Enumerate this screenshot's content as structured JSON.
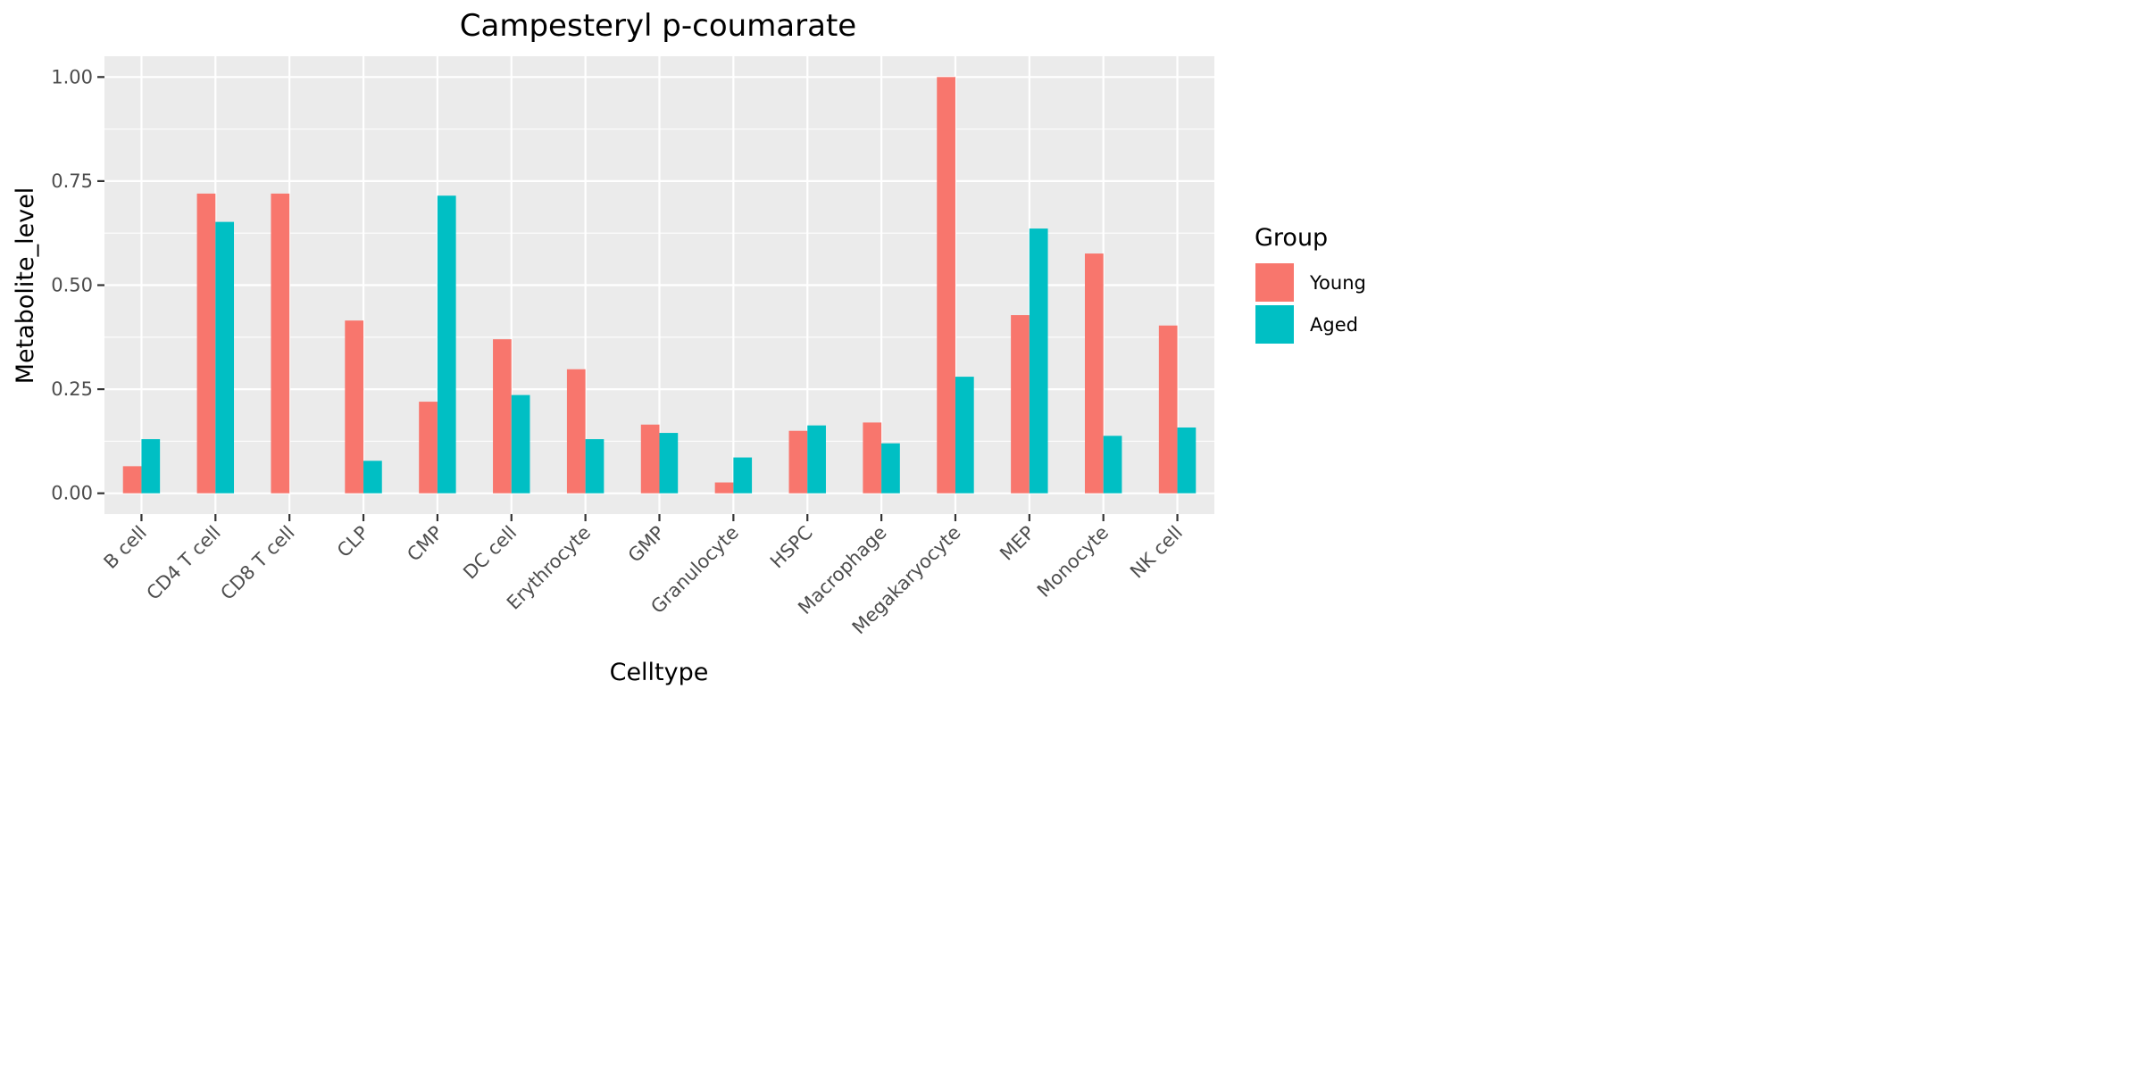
{
  "chart_data": {
    "type": "bar",
    "title": "Campesteryl p-coumarate",
    "xlabel": "Celltype",
    "ylabel": "Metabolite_level",
    "ylim": [
      -0.05,
      1.05
    ],
    "yticks": [
      "0.00",
      "0.25",
      "0.50",
      "0.75",
      "1.00"
    ],
    "ytick_values": [
      0,
      0.25,
      0.5,
      0.75,
      1.0
    ],
    "categories": [
      "B cell",
      "CD4 T cell",
      "CD8 T cell",
      "CLP",
      "CMP",
      "DC cell",
      "Erythrocyte",
      "GMP",
      "Granulocyte",
      "HSPC",
      "Macrophage",
      "Megakaryocyte",
      "MEP",
      "Monocyte",
      "NK cell"
    ],
    "series": [
      {
        "name": "Young",
        "color": "#F8766D",
        "values": [
          0.065,
          0.72,
          0.72,
          0.415,
          0.22,
          0.37,
          0.298,
          0.165,
          0.026,
          0.15,
          0.17,
          1.0,
          0.428,
          0.576,
          0.403
        ]
      },
      {
        "name": "Aged",
        "color": "#00BFC4",
        "values": [
          0.13,
          0.652,
          null,
          0.078,
          0.715,
          0.236,
          0.13,
          0.145,
          0.086,
          0.163,
          0.12,
          0.28,
          0.636,
          0.138,
          0.158
        ]
      }
    ],
    "legend": {
      "title": "Group",
      "position": "right"
    },
    "grid": true,
    "panel_background": "#EBEBEB"
  }
}
